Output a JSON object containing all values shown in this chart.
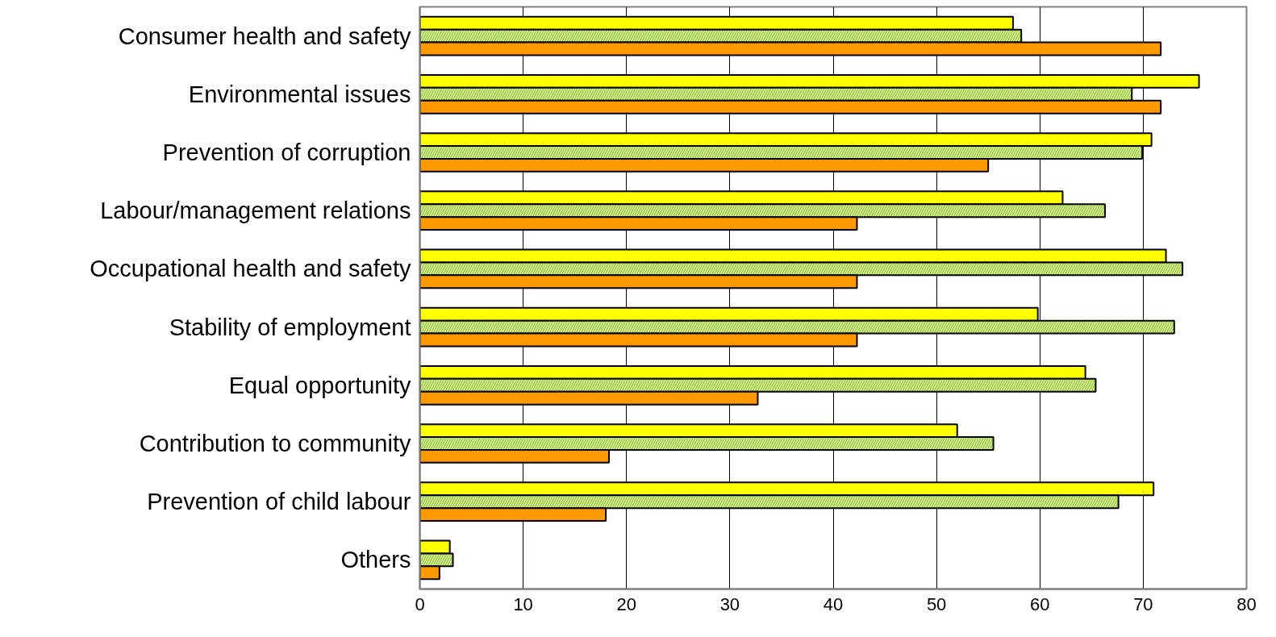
{
  "chart_data": {
    "type": "bar",
    "orientation": "horizontal",
    "categories": [
      "Consumer health and safety",
      "Environmental issues",
      "Prevention of corruption",
      "Labour/management relations",
      "Occupational health and safety",
      "Stability of employment",
      "Equal opportunity",
      "Contribution to community",
      "Prevention of child labour",
      "Others"
    ],
    "series": [
      {
        "color": "#ffff00",
        "values": [
          57.4,
          75.4,
          70.8,
          62.2,
          72.2,
          59.8,
          64.4,
          52.0,
          71.0,
          2.9
        ]
      },
      {
        "color": "#ccee88",
        "values": [
          58.2,
          68.9,
          69.9,
          66.3,
          73.8,
          73.0,
          65.4,
          55.5,
          67.6,
          3.2
        ]
      },
      {
        "color": "#ff9900",
        "values": [
          71.7,
          71.7,
          55.0,
          42.3,
          42.3,
          42.3,
          32.7,
          18.3,
          18.0,
          1.9
        ]
      }
    ],
    "xlim": [
      0,
      80
    ],
    "xticks": [
      0,
      10,
      20,
      30,
      40,
      50,
      60,
      70,
      80
    ],
    "grid": "x"
  }
}
